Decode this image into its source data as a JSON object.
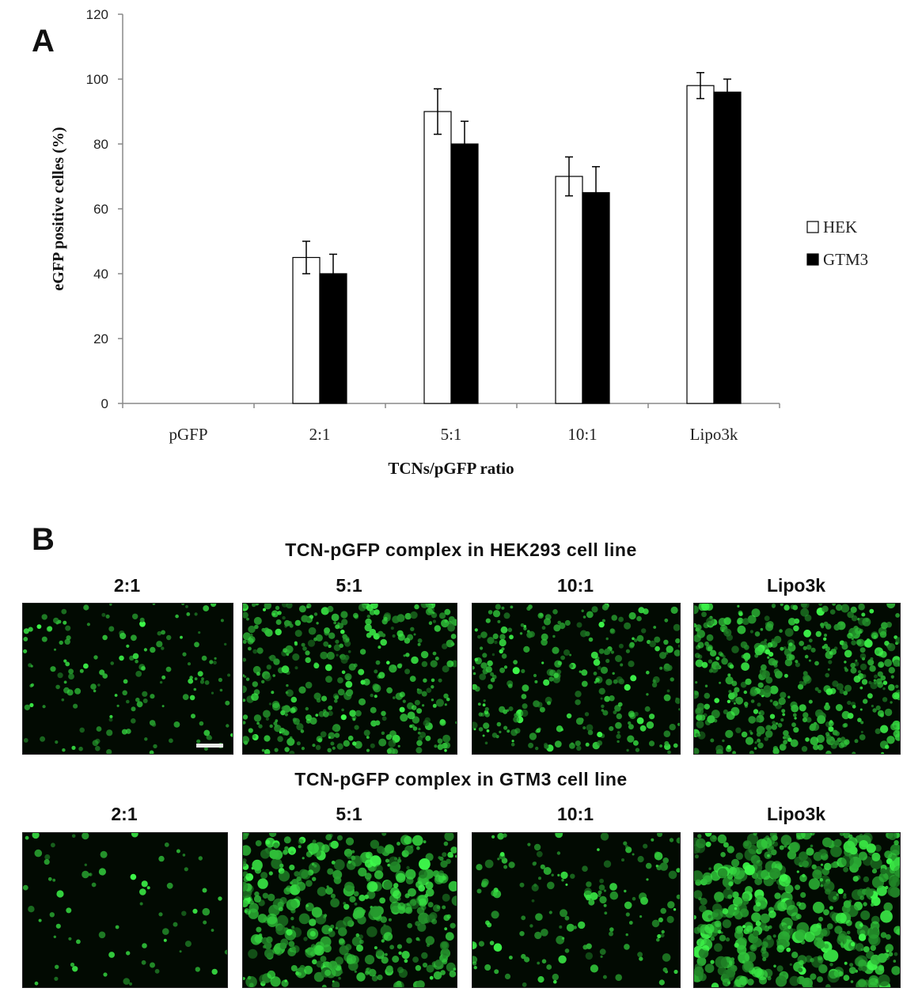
{
  "panel_a_letter": "A",
  "panel_b_letter": "B",
  "chart_data": {
    "type": "bar",
    "categories": [
      "pGFP",
      "2:1",
      "5:1",
      "10:1",
      "Lipo3k"
    ],
    "series": [
      {
        "name": "HEK",
        "values": [
          0,
          45,
          90,
          70,
          98
        ],
        "errors": [
          0,
          5,
          7,
          6,
          4
        ],
        "color": "#ffffff"
      },
      {
        "name": "GTM3",
        "values": [
          0,
          40,
          80,
          65,
          96
        ],
        "errors": [
          0,
          6,
          7,
          8,
          4
        ],
        "color": "#000000"
      }
    ],
    "title": "",
    "xlabel": "TCNs/pGFP ratio",
    "ylabel": "eGFP positive celles (%)",
    "ylim": [
      0,
      120
    ],
    "yticks": [
      0,
      20,
      40,
      60,
      80,
      100,
      120
    ],
    "grid": false,
    "legend": "right"
  },
  "panel_b": {
    "rows": [
      {
        "title": "TCN-pGFP complex in HEK293 cell line",
        "images": [
          {
            "label": "2:1",
            "density": 0.25
          },
          {
            "label": "5:1",
            "density": 0.7
          },
          {
            "label": "10:1",
            "density": 0.5
          },
          {
            "label": "Lipo3k",
            "density": 0.85
          }
        ]
      },
      {
        "title": "TCN-pGFP complex in GTM3 cell line",
        "images": [
          {
            "label": "2:1",
            "density": 0.08
          },
          {
            "label": "5:1",
            "density": 0.8
          },
          {
            "label": "10:1",
            "density": 0.25
          },
          {
            "label": "Lipo3k",
            "density": 0.95
          }
        ]
      }
    ]
  }
}
